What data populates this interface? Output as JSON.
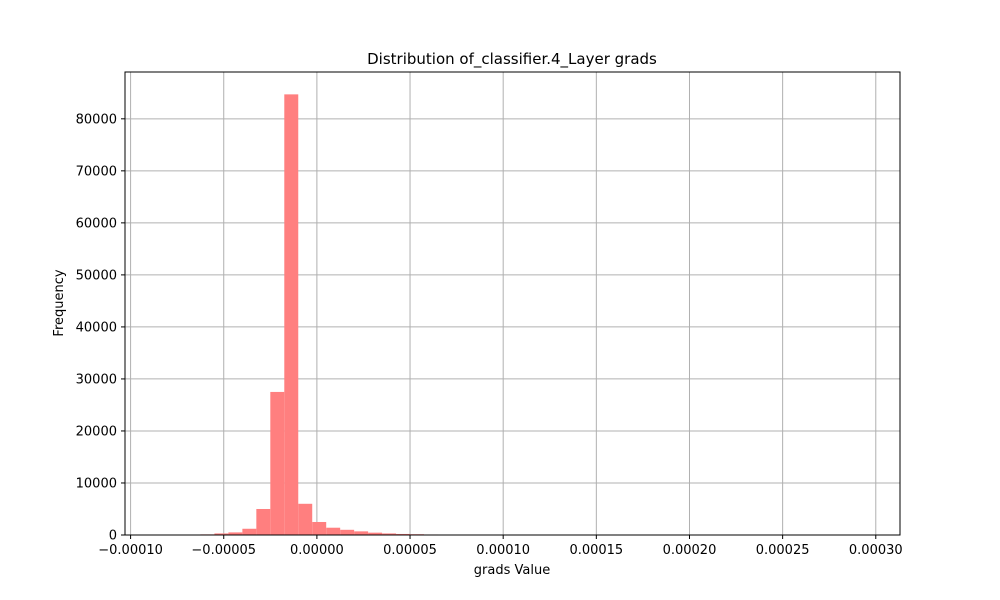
{
  "chart_data": {
    "type": "bar",
    "title": "Distribution of_classifier.4_Layer grads",
    "xlabel": "grads Value",
    "ylabel": "Frequency",
    "xlim": [
      -0.000103,
      0.000313
    ],
    "ylim": [
      0,
      89000
    ],
    "grid": true,
    "bar_color": "#ff7f7f",
    "x_ticks": [
      -0.0001,
      -5e-05,
      0.0,
      5e-05,
      0.0001,
      0.00015,
      0.0002,
      0.00025,
      0.0003
    ],
    "x_tick_labels": [
      "−0.00010",
      "−0.00005",
      "0.00000",
      "0.00005",
      "0.00010",
      "0.00015",
      "0.00020",
      "0.00025",
      "0.00030"
    ],
    "y_ticks": [
      0,
      10000,
      20000,
      30000,
      40000,
      50000,
      60000,
      70000,
      80000
    ],
    "y_tick_labels": [
      "0",
      "10000",
      "20000",
      "30000",
      "40000",
      "50000",
      "60000",
      "70000",
      "80000"
    ],
    "bin_start": -0.0001,
    "bin_width": 7.5e-06,
    "values": [
      20,
      30,
      40,
      60,
      80,
      120,
      300,
      500,
      1200,
      5000,
      27500,
      84700,
      6000,
      2500,
      1400,
      1000,
      700,
      450,
      300,
      200,
      150,
      100,
      60,
      40,
      30,
      20,
      15,
      10,
      8,
      6,
      5,
      4,
      3,
      3,
      2,
      2,
      1,
      1,
      1,
      1,
      1,
      1,
      1,
      1,
      1,
      1,
      1,
      1,
      1,
      1,
      1,
      1,
      1,
      1,
      1
    ]
  }
}
